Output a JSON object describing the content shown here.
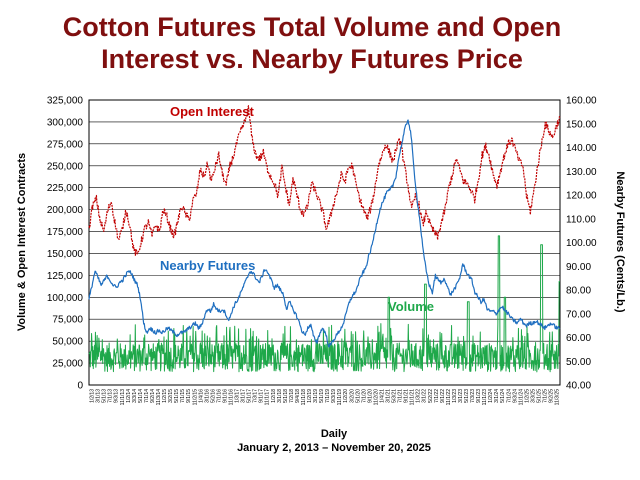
{
  "chart_data": {
    "type": "line",
    "title_lines": [
      "Cotton Futures Total Volume and Open",
      "Interest vs. Nearby Futures Price"
    ],
    "xlabel": "Daily",
    "xlabel_sub": "January 2, 2013 – November 20, 2025",
    "ylabel_left": "Volume & Open Interest Contracts",
    "ylabel_right": "Nearby Futures (Cents/Lb.)",
    "ylim_left": [
      0,
      325000
    ],
    "ylim_right": [
      40,
      160
    ],
    "yticks_left": [
      "325,000",
      "300,000",
      "275,000",
      "250,000",
      "225,000",
      "200,000",
      "175,000",
      "150,000",
      "125,000",
      "100,000",
      "75,000",
      "50,000",
      "25,000",
      "0"
    ],
    "yticks_right": [
      "160.00",
      "150.00",
      "140.00",
      "130.00",
      "120.00",
      "110.00",
      "100.00",
      "90.00",
      "80.00",
      "70.00",
      "60.00",
      "50.00",
      "40.00"
    ],
    "grid": true,
    "x_tick_labels": [
      "1/2/13",
      "3/1/13",
      "5/1/13",
      "7/1/13",
      "9/3/13",
      "11/1/13",
      "1/2/14",
      "3/3/14",
      "5/1/14",
      "7/1/14",
      "9/2/14",
      "11/3/14",
      "1/2/15",
      "3/2/15",
      "5/1/15",
      "7/1/15",
      "9/1/15",
      "11/2/15",
      "1/4/16",
      "3/1/16",
      "5/2/16",
      "7/1/16",
      "9/1/16",
      "11/1/16",
      "1/3/17",
      "3/1/17",
      "5/1/17",
      "7/3/17",
      "9/1/17",
      "11/1/17",
      "1/2/18",
      "3/1/18",
      "5/1/18",
      "7/2/18",
      "9/4/18",
      "11/1/18",
      "1/2/19",
      "3/1/19",
      "5/1/19",
      "7/1/19",
      "9/3/19",
      "11/1/19",
      "1/2/20",
      "3/2/20",
      "5/1/20",
      "7/1/20",
      "9/1/20",
      "11/2/20",
      "1/4/21",
      "3/1/21",
      "5/3/21",
      "7/1/21",
      "9/1/21",
      "11/1/21",
      "1/3/22",
      "3/1/22",
      "5/2/22",
      "7/1/22",
      "9/1/22",
      "11/1/22",
      "1/3/23",
      "3/1/23",
      "5/1/23",
      "7/3/23",
      "9/1/23",
      "11/1/23",
      "1/2/24",
      "3/1/24",
      "5/1/24",
      "7/1/24",
      "9/3/24",
      "11/1/24",
      "1/2/25",
      "3/3/25",
      "5/1/25",
      "7/1/25",
      "9/2/25",
      "11/3/25"
    ],
    "series": [
      {
        "name": "Open Interest",
        "label": "Open Interest",
        "axis": "left",
        "color": "#c00000",
        "style": "dashed",
        "values": [
          178000,
          205000,
          212000,
          188000,
          175000,
          198000,
          210000,
          185000,
          165000,
          178000,
          200000,
          182000,
          155000,
          148000,
          162000,
          178000,
          185000,
          170000,
          183000,
          175000,
          200000,
          192000,
          178000,
          170000,
          188000,
          205000,
          195000,
          188000,
          210000,
          218000,
          245000,
          238000,
          252000,
          232000,
          248000,
          262000,
          240000,
          228000,
          250000,
          262000,
          278000,
          290000,
          300000,
          315000,
          280000,
          262000,
          258000,
          265000,
          248000,
          238000,
          230000,
          215000,
          248000,
          225000,
          205000,
          235000,
          218000,
          200000,
          195000,
          205000,
          230000,
          222000,
          210000,
          198000,
          178000,
          190000,
          208000,
          222000,
          240000,
          232000,
          248000,
          250000,
          228000,
          212000,
          200000,
          190000,
          202000,
          222000,
          250000,
          262000,
          275000,
          265000,
          255000,
          272000,
          280000,
          250000,
          228000,
          200000,
          215000,
          205000,
          182000,
          198000,
          182000,
          175000,
          168000,
          185000,
          200000,
          225000,
          240000,
          258000,
          245000,
          232000,
          230000,
          222000,
          212000,
          235000,
          262000,
          272000,
          260000,
          240000,
          228000,
          245000,
          262000,
          275000,
          280000,
          268000,
          255000,
          250000,
          215000,
          198000,
          222000,
          250000,
          275000,
          298000,
          290000,
          282000,
          295000,
          305000
        ],
        "points": 128
      },
      {
        "name": "Nearby Futures",
        "label": "Nearby Futures",
        "axis": "right",
        "color": "#1f6fc0",
        "style": "solid",
        "values": [
          76,
          82,
          88,
          85,
          82,
          84,
          86,
          84,
          82,
          81,
          83,
          84,
          86,
          88,
          87,
          84,
          82,
          76,
          66,
          62,
          64,
          63,
          62,
          63,
          62,
          63,
          64,
          63,
          62,
          61,
          62,
          62,
          63,
          64,
          65,
          66,
          64,
          65,
          69,
          72,
          71,
          74,
          72,
          71,
          72,
          70,
          67,
          71,
          74,
          76,
          79,
          82,
          85,
          88,
          87,
          85,
          83,
          86,
          89,
          87,
          84,
          81,
          82,
          80,
          78,
          72,
          75,
          72,
          70,
          67,
          63,
          61,
          64,
          65,
          60,
          58,
          62,
          64,
          61,
          56,
          58,
          60,
          62,
          64,
          67,
          72,
          76,
          78,
          80,
          84,
          87,
          89,
          94,
          98,
          104,
          110,
          115,
          118,
          121,
          122,
          124,
          128,
          136,
          142,
          148,
          152,
          145,
          130,
          118,
          108,
          96,
          88,
          82,
          79,
          86,
          84,
          83,
          85,
          81,
          78,
          80,
          82,
          85,
          91,
          88,
          86,
          84,
          79,
          77,
          75,
          76,
          72,
          71,
          71,
          70,
          72,
          73,
          71,
          70,
          68,
          67,
          66,
          68,
          66,
          65,
          66,
          66,
          67,
          66,
          65,
          64,
          65,
          66,
          65,
          64,
          64
        ],
        "points": 156
      },
      {
        "name": "Volume",
        "label": "Volume",
        "axis": "left",
        "color": "#1ea84a",
        "style": "spiky",
        "typical_range": [
          15000,
          70000
        ],
        "peaks": [
          {
            "x_label": "3/1/21",
            "value": 100000
          },
          {
            "x_label": "3/1/22",
            "value": 115000
          },
          {
            "x_label": "5/1/23",
            "value": 95000
          },
          {
            "x_label": "3/1/24",
            "value": 170000
          },
          {
            "x_label": "5/1/24",
            "value": 100000
          },
          {
            "x_label": "5/1/25",
            "value": 160000
          },
          {
            "x_label": "11/3/25",
            "value": 118000
          }
        ]
      }
    ]
  }
}
